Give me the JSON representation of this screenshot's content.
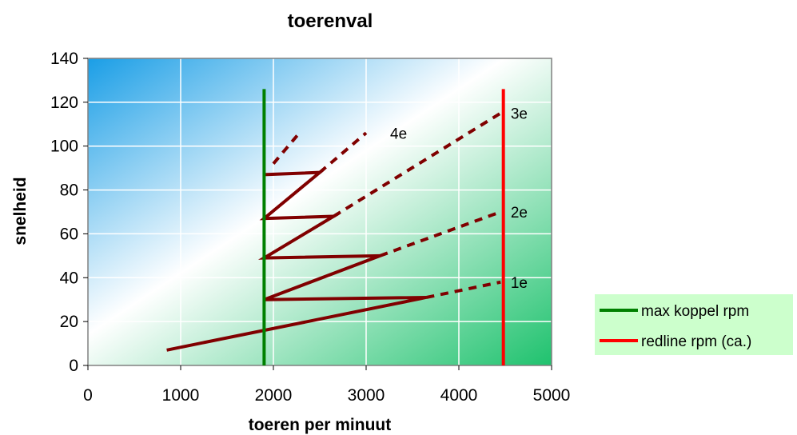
{
  "chart_data": {
    "type": "line",
    "title": "toerenval",
    "xlabel": "toeren per minuut",
    "ylabel": "snelheid",
    "xlim": [
      0,
      5000
    ],
    "ylim": [
      0,
      140
    ],
    "xticks": [
      0,
      1000,
      2000,
      3000,
      4000,
      5000
    ],
    "yticks": [
      0,
      20,
      40,
      60,
      80,
      100,
      120,
      140
    ],
    "grid": true,
    "legend_position": "bottom-right",
    "shift_path": {
      "color": "#800000",
      "points": [
        [
          850,
          7
        ],
        [
          3650,
          31
        ],
        [
          1900,
          30
        ],
        [
          3150,
          50
        ],
        [
          1900,
          49
        ],
        [
          2650,
          68
        ],
        [
          1900,
          67
        ],
        [
          2500,
          88
        ],
        [
          1900,
          87
        ]
      ]
    },
    "gear_extensions": {
      "color": "#800000",
      "lines": [
        {
          "label": "1e",
          "points": [
            [
              3650,
              31
            ],
            [
              4450,
              38
            ]
          ]
        },
        {
          "label": "2e",
          "points": [
            [
              3150,
              50
            ],
            [
              4450,
              70
            ]
          ]
        },
        {
          "label": "3e",
          "points": [
            [
              2650,
              68
            ],
            [
              4450,
              115
            ]
          ]
        },
        {
          "label": "4e",
          "points": [
            [
              2500,
              88
            ],
            [
              3000,
              106
            ]
          ]
        },
        {
          "label": "",
          "points": [
            [
              2000,
              92
            ],
            [
              2300,
              107
            ]
          ]
        }
      ]
    },
    "gear_labels": [
      {
        "text": "1e",
        "x": 4650,
        "y": 38
      },
      {
        "text": "2e",
        "x": 4650,
        "y": 70
      },
      {
        "text": "3e",
        "x": 4650,
        "y": 115
      },
      {
        "text": "4e",
        "x": 3350,
        "y": 106
      }
    ],
    "series": [
      {
        "name": "max koppel rpm",
        "color": "#008000",
        "x": [
          1900,
          1900
        ],
        "y": [
          0,
          126
        ]
      },
      {
        "name": "redline rpm (ca.)",
        "color": "#ff0000",
        "x": [
          4480,
          4480
        ],
        "y": [
          0,
          126
        ]
      }
    ]
  }
}
